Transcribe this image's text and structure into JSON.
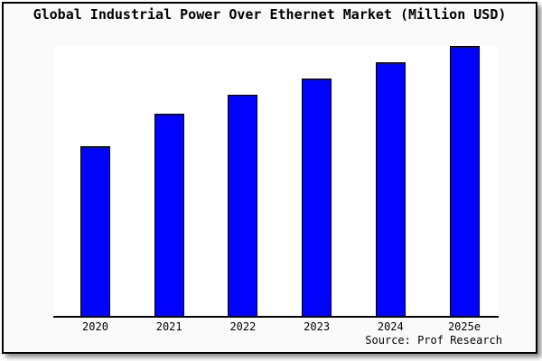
{
  "window": {
    "background_color": "#fafafa",
    "plot_background_color": "#ffffff",
    "border_color": "#000000"
  },
  "title": "Global Industrial Power Over Ethernet Market (Million USD)",
  "source_note": "Source: Prof Research",
  "chart_data": {
    "type": "bar",
    "title": "Global Industrial Power Over Ethernet Market (Million USD)",
    "categories": [
      "2020",
      "2021",
      "2022",
      "2023",
      "2024",
      "2025e"
    ],
    "values": [
      63,
      75,
      82,
      88,
      94,
      100
    ],
    "value_note": "No y-axis labels shown; values are a relative index estimated from bar heights with 2025e = 100",
    "xlabel": "",
    "ylabel": "",
    "ylim": [
      0,
      100
    ],
    "grid": false,
    "legend": false,
    "bar_color": "#0101FE",
    "bar_border_color": "#000000",
    "source_note": "Source: Prof Research"
  }
}
